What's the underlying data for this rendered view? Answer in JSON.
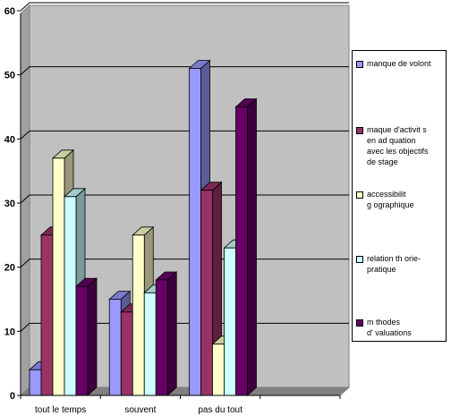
{
  "chart_data": {
    "type": "bar",
    "categories": [
      "tout le temps",
      "souvent",
      "pas du tout",
      ""
    ],
    "series": [
      {
        "name": "manque de volont",
        "color": "#9999ff",
        "values": [
          4,
          15,
          51,
          0
        ]
      },
      {
        "name": "maque d'activit s en ad quation avec les objectifs de stage",
        "color": "#993366",
        "values": [
          25,
          13,
          32,
          0
        ]
      },
      {
        "name": "accessibilit g ographique",
        "color": "#ffffcc",
        "values": [
          37,
          25,
          8,
          0
        ]
      },
      {
        "name": "relation th orie-pratique",
        "color": "#ccffff",
        "values": [
          31,
          16,
          23,
          0
        ]
      },
      {
        "name": "m thodes d' valuations",
        "color": "#660066",
        "values": [
          17,
          18,
          45,
          0
        ]
      }
    ],
    "yticks": [
      0,
      10,
      20,
      30,
      40,
      50,
      60
    ],
    "ylim": [
      0,
      60
    ],
    "grid": true,
    "legend_position": "right",
    "three_d": true
  },
  "legend": {
    "items": [
      {
        "label": "manque de volont",
        "color": "#9999ff"
      },
      {
        "label": "maque d'activit  s\nen ad  quation\navec les objectifs\nde stage",
        "color": "#993366"
      },
      {
        "label": "accessibilit\n g ographique",
        "color": "#ffffcc"
      },
      {
        "label": "relation th  orie-\npratique",
        "color": "#ccffff"
      },
      {
        "label": "m  thodes\nd'  valuations",
        "color": "#660066"
      }
    ]
  }
}
